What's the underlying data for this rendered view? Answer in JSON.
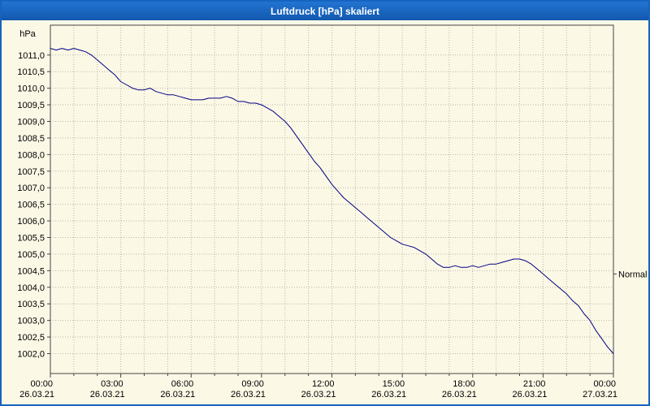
{
  "window": {
    "title": "Luftdruck [hPa] skaliert"
  },
  "chart_data": {
    "type": "line",
    "title": "Luftdruck [hPa] skaliert",
    "xlabel": "",
    "ylabel": "hPa",
    "xlim": [
      0,
      24
    ],
    "ylim": [
      1001.4,
      1011.9
    ],
    "grid": true,
    "legend_position": "none",
    "colors": {
      "background": "#fcf8e6",
      "plot_background": "#fcf8e6",
      "grid": "#b5b5a8",
      "frame": "#444444",
      "axis_text": "#000000",
      "line": "#000082",
      "titlebar": "#1564c0",
      "title_text": "#ffffff"
    },
    "y_ticks": [
      {
        "value": 1011.0,
        "label": "1011,0"
      },
      {
        "value": 1010.5,
        "label": "1010,5"
      },
      {
        "value": 1010.0,
        "label": "1010,0"
      },
      {
        "value": 1009.5,
        "label": "1009,5"
      },
      {
        "value": 1009.0,
        "label": "1009,0"
      },
      {
        "value": 1008.5,
        "label": "1008,5"
      },
      {
        "value": 1008.0,
        "label": "1008,0"
      },
      {
        "value": 1007.5,
        "label": "1007,5"
      },
      {
        "value": 1007.0,
        "label": "1007,0"
      },
      {
        "value": 1006.5,
        "label": "1006,5"
      },
      {
        "value": 1006.0,
        "label": "1006,0"
      },
      {
        "value": 1005.5,
        "label": "1005,5"
      },
      {
        "value": 1005.0,
        "label": "1005,0"
      },
      {
        "value": 1004.5,
        "label": "1004,5"
      },
      {
        "value": 1004.0,
        "label": "1004,0"
      },
      {
        "value": 1003.5,
        "label": "1003,5"
      },
      {
        "value": 1003.0,
        "label": "1003,0"
      },
      {
        "value": 1002.5,
        "label": "1002,5"
      },
      {
        "value": 1002.0,
        "label": "1002,0"
      }
    ],
    "x_ticks": [
      {
        "hour": 0,
        "time": "00:00",
        "date": "26.03.21"
      },
      {
        "hour": 3,
        "time": "03:00",
        "date": "26.03.21"
      },
      {
        "hour": 6,
        "time": "06:00",
        "date": "26.03.21"
      },
      {
        "hour": 9,
        "time": "09:00",
        "date": "26.03.21"
      },
      {
        "hour": 12,
        "time": "12:00",
        "date": "26.03.21"
      },
      {
        "hour": 15,
        "time": "15:00",
        "date": "26.03.21"
      },
      {
        "hour": 18,
        "time": "18:00",
        "date": "26.03.21"
      },
      {
        "hour": 21,
        "time": "21:00",
        "date": "26.03.21"
      },
      {
        "hour": 24,
        "time": "00:00",
        "date": "27.03.21"
      }
    ],
    "minor_x_step_hours": 1,
    "annotations": [
      {
        "label": "Normal",
        "y": 1004.4,
        "side": "right"
      }
    ],
    "series": [
      {
        "name": "Luftdruck",
        "color": "#000082",
        "x_start": 0,
        "x_step_hours": 0.25,
        "values": [
          1011.2,
          1011.15,
          1011.2,
          1011.15,
          1011.2,
          1011.15,
          1011.1,
          1011.0,
          1010.85,
          1010.7,
          1010.55,
          1010.4,
          1010.2,
          1010.1,
          1010.0,
          1009.95,
          1009.95,
          1010.0,
          1009.9,
          1009.85,
          1009.8,
          1009.8,
          1009.75,
          1009.7,
          1009.65,
          1009.65,
          1009.65,
          1009.7,
          1009.7,
          1009.7,
          1009.75,
          1009.7,
          1009.6,
          1009.6,
          1009.55,
          1009.55,
          1009.5,
          1009.4,
          1009.3,
          1009.15,
          1009.0,
          1008.8,
          1008.55,
          1008.3,
          1008.05,
          1007.8,
          1007.6,
          1007.35,
          1007.1,
          1006.9,
          1006.7,
          1006.55,
          1006.4,
          1006.25,
          1006.1,
          1005.95,
          1005.8,
          1005.65,
          1005.5,
          1005.4,
          1005.3,
          1005.25,
          1005.2,
          1005.1,
          1005.0,
          1004.85,
          1004.7,
          1004.6,
          1004.6,
          1004.65,
          1004.6,
          1004.6,
          1004.65,
          1004.6,
          1004.65,
          1004.7,
          1004.7,
          1004.75,
          1004.8,
          1004.85,
          1004.85,
          1004.8,
          1004.7,
          1004.55,
          1004.4,
          1004.25,
          1004.1,
          1003.95,
          1003.8,
          1003.6,
          1003.45,
          1003.2,
          1003.0,
          1002.7,
          1002.45,
          1002.2,
          1002.0
        ]
      }
    ]
  }
}
